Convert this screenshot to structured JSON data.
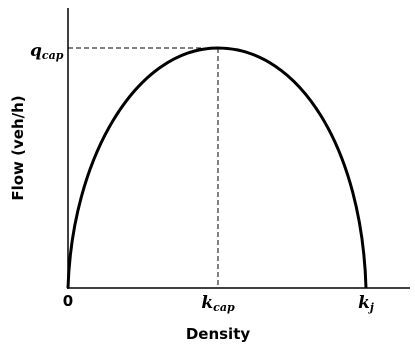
{
  "axes": {
    "y_label": "Flow (veh/h)",
    "x_label": "Density",
    "origin": "0"
  },
  "markers": {
    "q_cap": {
      "main": "q",
      "sub": "cap"
    },
    "k_cap": {
      "main": "k",
      "sub": "cap"
    },
    "k_j": {
      "main": "k",
      "sub": "j"
    }
  }
}
